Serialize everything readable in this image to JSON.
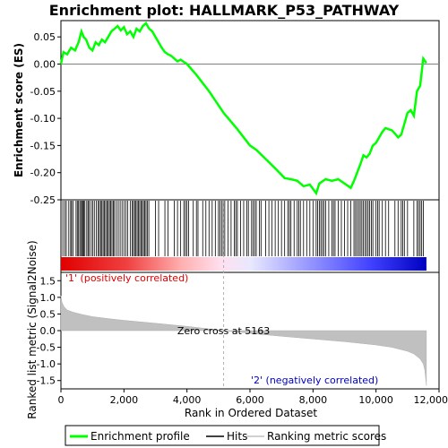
{
  "chart_data": [
    {
      "type": "line",
      "title": "Enrichment plot: HALLMARK_P53_PATHWAY",
      "ylabel": "Enrichment score (ES)",
      "ylim": [
        -0.25,
        0.08
      ],
      "yticks": [
        0.05,
        0.0,
        -0.05,
        -0.1,
        -0.15,
        -0.2,
        -0.25
      ],
      "ytick_labels": [
        "0.05",
        "0.00",
        "-0.05",
        "-0.10",
        "-0.15",
        "-0.20",
        "-0.25"
      ],
      "xlim": [
        0,
        12000
      ],
      "series": [
        {
          "name": "Enrichment profile",
          "color": "#00ff00",
          "x": [
            0,
            80,
            200,
            320,
            450,
            560,
            650,
            720,
            800,
            900,
            1000,
            1100,
            1200,
            1300,
            1400,
            1500,
            1600,
            1700,
            1800,
            1900,
            2000,
            2100,
            2200,
            2300,
            2400,
            2500,
            2600,
            2700,
            2800,
            2900,
            3000,
            3100,
            3200,
            3300,
            3400,
            3500,
            3600,
            3700,
            3800,
            3900,
            4000,
            4300,
            4700,
            5163,
            5600,
            6000,
            6200,
            6500,
            6800,
            7100,
            7300,
            7500,
            7700,
            7900,
            8100,
            8200,
            8400,
            8600,
            8800,
            9000,
            9200,
            9300,
            9400,
            9500,
            9600,
            9700,
            9800,
            9900,
            10000,
            10100,
            10200,
            10300,
            10500,
            10600,
            10700,
            10800,
            10900,
            11000,
            11100,
            11200,
            11300,
            11400,
            11500,
            11600
          ],
          "y": [
            0.0,
            0.022,
            0.018,
            0.03,
            0.025,
            0.04,
            0.06,
            0.05,
            0.045,
            0.03,
            0.025,
            0.04,
            0.035,
            0.045,
            0.04,
            0.05,
            0.06,
            0.065,
            0.07,
            0.062,
            0.068,
            0.055,
            0.06,
            0.05,
            0.065,
            0.06,
            0.07,
            0.075,
            0.065,
            0.06,
            0.05,
            0.04,
            0.03,
            0.022,
            0.018,
            0.015,
            0.01,
            0.005,
            0.008,
            0.004,
            0.0,
            -0.02,
            -0.05,
            -0.09,
            -0.12,
            -0.15,
            -0.158,
            -0.175,
            -0.192,
            -0.21,
            -0.212,
            -0.215,
            -0.225,
            -0.222,
            -0.238,
            -0.22,
            -0.212,
            -0.215,
            -0.212,
            -0.22,
            -0.228,
            -0.215,
            -0.2,
            -0.185,
            -0.168,
            -0.172,
            -0.165,
            -0.15,
            -0.145,
            -0.135,
            -0.125,
            -0.118,
            -0.122,
            -0.128,
            -0.135,
            -0.13,
            -0.11,
            -0.09,
            -0.085,
            -0.095,
            -0.05,
            -0.04,
            0.01,
            0.002
          ]
        }
      ]
    },
    {
      "type": "barcode",
      "title": "Hits",
      "xlim": [
        0,
        12000
      ],
      "hits": [
        60,
        120,
        170,
        250,
        310,
        340,
        390,
        480,
        520,
        560,
        600,
        640,
        680,
        700,
        720,
        760,
        820,
        860,
        900,
        960,
        1010,
        1060,
        1120,
        1180,
        1220,
        1260,
        1300,
        1340,
        1380,
        1420,
        1460,
        1500,
        1540,
        1580,
        1620,
        1660,
        1700,
        1760,
        1820,
        1880,
        1940,
        2000,
        2060,
        2120,
        2200,
        2260,
        2300,
        2340,
        2380,
        2420,
        2460,
        2500,
        2540,
        2580,
        2620,
        2660,
        2700,
        2740,
        2790,
        3000,
        3100,
        3300,
        3400,
        3600,
        3700,
        3800,
        3900,
        3950,
        4000,
        4050,
        4200,
        4300,
        4350,
        4500,
        4600,
        4700,
        4800,
        4900,
        5000,
        5050,
        5100,
        5150,
        5200,
        5300,
        5400,
        5500,
        5550,
        5600,
        5700,
        5800,
        5900,
        5950,
        6050,
        6100,
        6150,
        6200,
        6300,
        6350,
        6500,
        6600,
        6700,
        6800,
        6900,
        7000,
        7100,
        7200,
        7250,
        7300,
        7400,
        7500,
        7550,
        7600,
        7700,
        7800,
        7900,
        8000,
        8100,
        8150,
        8200,
        8250,
        8300,
        8350,
        8400,
        8500,
        8600,
        8650,
        8700,
        8800,
        8900,
        9000,
        9100,
        9200,
        9300,
        9350,
        9400,
        9450,
        9500,
        9550,
        9600,
        9650,
        9700,
        9750,
        9800,
        9850,
        9900,
        10000,
        10050,
        10100,
        10200,
        10300,
        10400,
        10600,
        10700,
        10800,
        10850,
        10900,
        11000,
        11200,
        11300,
        11350,
        11400,
        11450,
        11500
      ]
    },
    {
      "type": "area",
      "ylabel": "Ranked list metric (Signal2Noise)",
      "xlabel": "Rank in Ordered Dataset",
      "ylim": [
        -1.75,
        1.75
      ],
      "yticks": [
        1.5,
        1.0,
        0.5,
        0.0,
        -0.5,
        -1.0,
        -1.5
      ],
      "ytick_labels": [
        "1.5",
        "1.0",
        "0.5",
        "0.0",
        "-0.5",
        "-1.0",
        "-1.5"
      ],
      "xlim": [
        0,
        12000
      ],
      "xticks": [
        0,
        2000,
        4000,
        6000,
        8000,
        10000,
        12000
      ],
      "xtick_labels": [
        "0",
        "2,000",
        "4,000",
        "6,000",
        "8,000",
        "10,000",
        "12,000"
      ],
      "x": [
        0,
        30,
        100,
        200,
        400,
        700,
        1000,
        1500,
        2000,
        3000,
        4000,
        5163,
        6000,
        7000,
        8000,
        9000,
        10000,
        10500,
        11000,
        11200,
        11400,
        11500,
        11550,
        11600
      ],
      "y": [
        1.05,
        0.85,
        0.72,
        0.62,
        0.55,
        0.48,
        0.42,
        0.36,
        0.31,
        0.22,
        0.13,
        0.0,
        -0.08,
        -0.17,
        -0.25,
        -0.33,
        -0.43,
        -0.5,
        -0.62,
        -0.7,
        -0.85,
        -1.0,
        -1.2,
        -1.65
      ],
      "fill": "#c0c0c0",
      "zero_cross_rank": 5163,
      "annotations": {
        "zero_cross": "Zero cross at 5163",
        "positive": "'1' (positively correlated)",
        "negative": "'2' (negatively correlated)"
      }
    }
  ],
  "legend": [
    {
      "label": "Enrichment profile",
      "color": "#00ff00"
    },
    {
      "label": "Hits",
      "color": "#000000"
    },
    {
      "label": "Ranking metric scores",
      "color": "#c0c0c0"
    }
  ]
}
